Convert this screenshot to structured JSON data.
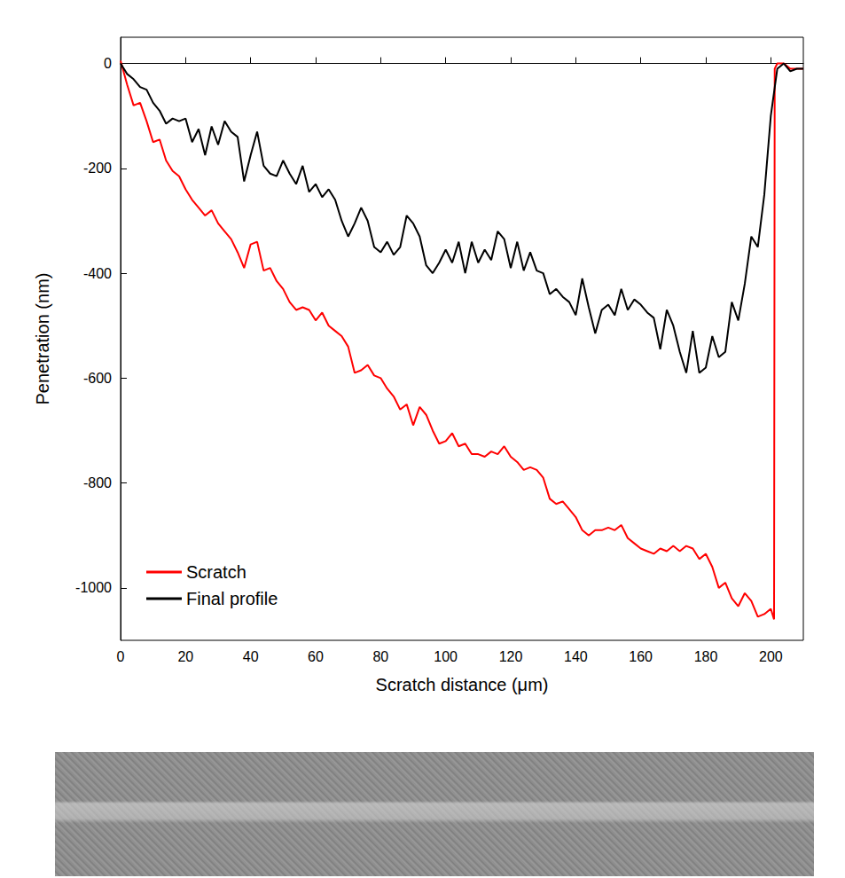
{
  "chart_data": {
    "type": "line",
    "xlabel": "Scratch distance (μm)",
    "ylabel": "Penetration (nm)",
    "xlim": [
      0,
      210
    ],
    "xticks": [
      0,
      20,
      40,
      60,
      80,
      100,
      120,
      140,
      160,
      180,
      200
    ],
    "ylim": [
      -1100,
      50
    ],
    "yticks": [
      -1000,
      -800,
      -600,
      -400,
      -200,
      0
    ],
    "legend": "lower left",
    "grid": false,
    "series": [
      {
        "name": "Scratch",
        "color": "#ff0000",
        "x": [
          0,
          2,
          4,
          6,
          8,
          10,
          12,
          14,
          16,
          18,
          20,
          22,
          24,
          26,
          28,
          30,
          32,
          34,
          36,
          38,
          40,
          42,
          44,
          46,
          48,
          50,
          52,
          54,
          56,
          58,
          60,
          62,
          64,
          66,
          68,
          70,
          72,
          74,
          76,
          78,
          80,
          82,
          84,
          86,
          88,
          90,
          92,
          94,
          96,
          98,
          100,
          102,
          104,
          106,
          108,
          110,
          112,
          114,
          116,
          118,
          120,
          122,
          124,
          126,
          128,
          130,
          132,
          134,
          136,
          138,
          140,
          142,
          144,
          146,
          148,
          150,
          152,
          154,
          156,
          158,
          160,
          162,
          164,
          166,
          168,
          170,
          172,
          174,
          176,
          178,
          180,
          182,
          184,
          186,
          188,
          190,
          192,
          194,
          196,
          198,
          200,
          201,
          201.2,
          202,
          204,
          206,
          208,
          210
        ],
        "values": [
          5,
          -40,
          -80,
          -75,
          -110,
          -150,
          -145,
          -185,
          -205,
          -215,
          -240,
          -260,
          -275,
          -290,
          -280,
          -305,
          -320,
          -335,
          -360,
          -390,
          -345,
          -340,
          -395,
          -390,
          -415,
          -430,
          -455,
          -470,
          -465,
          -470,
          -490,
          -475,
          -500,
          -510,
          -520,
          -540,
          -590,
          -585,
          -575,
          -595,
          -600,
          -620,
          -635,
          -660,
          -650,
          -690,
          -655,
          -670,
          -700,
          -725,
          -720,
          -705,
          -730,
          -725,
          -745,
          -745,
          -750,
          -740,
          -745,
          -730,
          -750,
          -760,
          -775,
          -770,
          -775,
          -790,
          -830,
          -840,
          -835,
          -850,
          -865,
          -890,
          -900,
          -890,
          -890,
          -885,
          -890,
          -880,
          -905,
          -915,
          -925,
          -930,
          -935,
          -925,
          -930,
          -920,
          -930,
          -920,
          -925,
          -945,
          -935,
          -960,
          -1000,
          -990,
          -1020,
          -1035,
          -1010,
          -1025,
          -1055,
          -1050,
          -1040,
          -1060,
          -10,
          0,
          0,
          -10,
          -10,
          -10
        ]
      },
      {
        "name": "Final profile",
        "color": "#000000",
        "x": [
          0,
          2,
          4,
          6,
          8,
          10,
          12,
          14,
          16,
          18,
          20,
          22,
          24,
          26,
          28,
          30,
          32,
          34,
          36,
          38,
          40,
          42,
          44,
          46,
          48,
          50,
          52,
          54,
          56,
          58,
          60,
          62,
          64,
          66,
          68,
          70,
          72,
          74,
          76,
          78,
          80,
          82,
          84,
          86,
          88,
          90,
          92,
          94,
          96,
          98,
          100,
          102,
          104,
          106,
          108,
          110,
          112,
          114,
          116,
          118,
          120,
          122,
          124,
          126,
          128,
          130,
          132,
          134,
          136,
          138,
          140,
          142,
          144,
          146,
          148,
          150,
          152,
          154,
          156,
          158,
          160,
          162,
          164,
          166,
          168,
          170,
          172,
          174,
          176,
          178,
          180,
          182,
          184,
          186,
          188,
          190,
          192,
          194,
          196,
          198,
          200,
          202,
          204,
          206,
          208,
          210
        ],
        "values": [
          0,
          -20,
          -30,
          -45,
          -50,
          -75,
          -90,
          -115,
          -105,
          -110,
          -105,
          -150,
          -125,
          -175,
          -120,
          -155,
          -110,
          -130,
          -140,
          -225,
          -175,
          -130,
          -195,
          -210,
          -215,
          -185,
          -210,
          -230,
          -195,
          -245,
          -230,
          -255,
          -240,
          -260,
          -300,
          -330,
          -305,
          -275,
          -300,
          -350,
          -360,
          -340,
          -365,
          -350,
          -290,
          -305,
          -330,
          -385,
          -400,
          -380,
          -355,
          -380,
          -340,
          -400,
          -340,
          -380,
          -355,
          -375,
          -320,
          -335,
          -390,
          -340,
          -395,
          -360,
          -395,
          -400,
          -440,
          -430,
          -445,
          -455,
          -480,
          -410,
          -465,
          -515,
          -470,
          -460,
          -480,
          -430,
          -470,
          -450,
          -460,
          -475,
          -485,
          -545,
          -470,
          -500,
          -550,
          -590,
          -510,
          -590,
          -580,
          -520,
          -560,
          -550,
          -455,
          -490,
          -420,
          -330,
          -350,
          -250,
          -100,
          -10,
          0,
          -15,
          -10,
          -10
        ]
      }
    ]
  }
}
